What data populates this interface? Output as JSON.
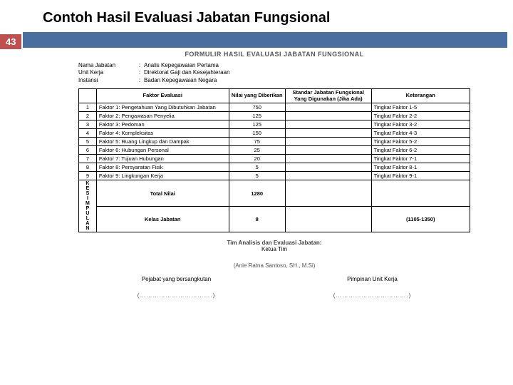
{
  "slide": {
    "title": "Contoh  Hasil Evaluasi Jabatan Fungsional",
    "page_number": "43"
  },
  "form": {
    "title": "FORMULIR HASIL EVALUASI JABATAN FUNGSIONAL",
    "meta": [
      {
        "label": "Nama Jabatan",
        "value": "Analis Kepegawaian Pertama"
      },
      {
        "label": "Unit Kerja",
        "value": "Direktorat Gaji dan Kesejahteraan"
      },
      {
        "label": "Instansi",
        "value": "Badan Kepegawaian Negara"
      }
    ],
    "headers": {
      "num": "",
      "factor": "Faktor Evaluasi",
      "value": "Nilai yang Diberikan",
      "standard": "Standar Jabatan Fungsional Yang Digunakan (Jika Ada)",
      "notes": "Keterangan"
    },
    "rows": [
      {
        "n": "1",
        "factor": "Faktor 1: Pengetahuan Yang Dibutuhkan Jabatan",
        "value": "750",
        "std": "",
        "note": "Tingkat Faktor 1-5"
      },
      {
        "n": "2",
        "factor": "Faktor 2: Pengawasan Penyelia",
        "value": "125",
        "std": "",
        "note": "Tingkat Faktor 2-2"
      },
      {
        "n": "3",
        "factor": "Faktor 3: Pedoman",
        "value": "125",
        "std": "",
        "note": "Tingkat Faktor 3-2"
      },
      {
        "n": "4",
        "factor": "Faktor 4: Kompleksitas",
        "value": "150",
        "std": "",
        "note": "Tingkat Faktor 4-3"
      },
      {
        "n": "5",
        "factor": "Faktor 5: Ruang Lingkup dan Dampak",
        "value": "75",
        "std": "",
        "note": "Tingkat Faktor 5-2"
      },
      {
        "n": "6",
        "factor": "Faktor 6: Hubungan Personal",
        "value": "25",
        "std": "",
        "note": "Tingkat Faktor 6-2"
      },
      {
        "n": "7",
        "factor": "Faktor 7: Tujuan Hubungan",
        "value": "20",
        "std": "",
        "note": "Tingkat Faktor 7-1"
      },
      {
        "n": "8",
        "factor": "Faktor 8: Persyaratan Fisik",
        "value": "5",
        "std": "",
        "note": "Tingkat Faktor 8-1"
      },
      {
        "n": "9",
        "factor": "Faktor 9: Lingkungan Kerja",
        "value": "5",
        "std": "",
        "note": "Tingkat Faktor 9-1"
      }
    ],
    "summary": {
      "vertical_label": "KESIMPULAN",
      "total_label": "Total Nilai",
      "total_value": "1280",
      "class_label": "Kelas Jabatan",
      "class_value": "8",
      "class_range": "(1105-1350)"
    },
    "signatures": {
      "team_title": "Tim Analisis dan Evaluasi Jabatan:",
      "team_sub": "Ketua Tim",
      "team_name": "(Anie Ratna Santoso, SH., M.Si)",
      "left_role": "Pejabat yang bersangkutan",
      "left_dots": "(…………………………….)",
      "right_role": "Pimpinan Unit Kerja",
      "right_dots": "(…………………………….)"
    }
  },
  "colors": {
    "badge_bg": "#c05050",
    "bar_bg": "#4a6ea0"
  }
}
